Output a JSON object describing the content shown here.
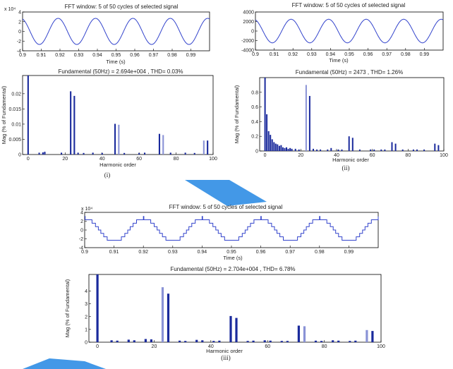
{
  "colors": {
    "signal": "#3344cc",
    "bar": "#1a2a9c",
    "bar_light": "#8a93d6",
    "watermark": "#2f8de4",
    "axis": "#000000"
  },
  "chart_data": [
    {
      "id": "p1-signal",
      "type": "line",
      "title": "FFT window: 5 of 50 cycles of selected signal",
      "xlabel": "Time (s)",
      "ylabel": "",
      "exponent": "x 10⁴",
      "xlim": [
        0.9,
        1.0
      ],
      "ylim": [
        -4,
        4
      ],
      "xticks": [
        0.9,
        0.91,
        0.92,
        0.93,
        0.94,
        0.95,
        0.96,
        0.97,
        0.98,
        0.99
      ],
      "xtick_labels": [
        "0.9",
        "0.91",
        "0.92",
        "0.93",
        "0.94",
        "0.95",
        "0.96",
        "0.97",
        "0.98",
        "0.99"
      ],
      "yticks": [
        -4,
        -2,
        0,
        2,
        4
      ],
      "ytick_labels": [
        "-4",
        "-2",
        "0",
        "2",
        "4"
      ],
      "amplitude": 2.69,
      "frequency_hz": 50,
      "phase": 0.3,
      "stepped": false
    },
    {
      "id": "p1-spectrum",
      "type": "bar",
      "title": "Fundamental (50Hz) = 2.694e+004 , THD= 0.03%",
      "xlabel": "Harmonic order",
      "ylabel": "Mag (% of Fundamental)",
      "xlim": [
        -3,
        100
      ],
      "ylim": [
        0,
        0.026
      ],
      "xticks": [
        0,
        20,
        40,
        60,
        80,
        100
      ],
      "xtick_labels": [
        "0",
        "20",
        "40",
        "60",
        "80",
        "100"
      ],
      "yticks": [
        0,
        0.005,
        0.01,
        0.015,
        0.02
      ],
      "ytick_labels": [
        "0",
        "0.005",
        "0.01",
        "0.015",
        "0.02"
      ],
      "harmonics": [
        0,
        6,
        8,
        9,
        18,
        23,
        25,
        27,
        30,
        35,
        40,
        47,
        49,
        52,
        60,
        63,
        71,
        73,
        77,
        85,
        90,
        95,
        97
      ],
      "values": [
        0.0265,
        0.0006,
        0.0007,
        0.0009,
        0.0006,
        0.0208,
        0.0193,
        0.0006,
        0.0005,
        0.0006,
        0.0005,
        0.0101,
        0.0098,
        0.0005,
        0.0005,
        0.0006,
        0.0068,
        0.0064,
        0.0006,
        0.0006,
        0.0005,
        0.0046,
        0.0046
      ],
      "light": [
        false,
        false,
        false,
        false,
        false,
        false,
        false,
        false,
        false,
        false,
        false,
        false,
        true,
        false,
        false,
        false,
        false,
        true,
        false,
        false,
        false,
        true,
        false
      ]
    },
    {
      "id": "p2-signal",
      "type": "line",
      "title": "FFT window: 5 of 50 cycles of selected signal",
      "xlabel": "Time (s)",
      "ylabel": "",
      "exponent": "",
      "xlim": [
        0.9,
        1.0
      ],
      "ylim": [
        -4000,
        4000
      ],
      "xticks": [
        0.9,
        0.91,
        0.92,
        0.93,
        0.94,
        0.95,
        0.96,
        0.97,
        0.98,
        0.99
      ],
      "xtick_labels": [
        "0.9",
        "0.91",
        "0.92",
        "0.93",
        "0.94",
        "0.95",
        "0.96",
        "0.97",
        "0.98",
        "0.99"
      ],
      "yticks": [
        -4000,
        -2000,
        0,
        2000,
        4000
      ],
      "ytick_labels": [
        "-4000",
        "-2000",
        "0",
        "2000",
        "4000"
      ],
      "amplitude": 2473,
      "frequency_hz": 50,
      "phase": 0.3,
      "stepped": false
    },
    {
      "id": "p2-spectrum",
      "type": "bar",
      "title": "Fundamental (50Hz) = 2473 , THD= 1.26%",
      "xlabel": "Harmonic order",
      "ylabel": "Mag (% of Fundamental)",
      "xlim": [
        -3,
        100
      ],
      "ylim": [
        0,
        1.0
      ],
      "xticks": [
        0,
        20,
        40,
        60,
        80,
        100
      ],
      "xtick_labels": [
        "0",
        "20",
        "40",
        "60",
        "80",
        "100"
      ],
      "yticks": [
        0,
        0.2,
        0.4,
        0.6,
        0.8
      ],
      "ytick_labels": [
        "0",
        "0.2",
        "0.4",
        "0.6",
        "0.8"
      ],
      "harmonics": [
        0,
        1,
        2,
        3,
        4,
        5,
        6,
        7,
        8,
        9,
        10,
        11,
        12,
        13,
        14,
        15,
        17,
        19,
        23,
        25,
        27,
        29,
        31,
        35,
        37,
        41,
        43,
        47,
        49,
        53,
        59,
        61,
        65,
        67,
        71,
        73,
        77,
        83,
        85,
        89,
        95,
        97
      ],
      "values": [
        1.0,
        0.5,
        0.27,
        0.22,
        0.16,
        0.12,
        0.1,
        0.09,
        0.07,
        0.08,
        0.05,
        0.04,
        0.05,
        0.03,
        0.04,
        0.03,
        0.03,
        0.02,
        0.9,
        0.75,
        0.03,
        0.02,
        0.02,
        0.02,
        0.04,
        0.02,
        0.02,
        0.2,
        0.18,
        0.02,
        0.02,
        0.02,
        0.02,
        0.02,
        0.12,
        0.1,
        0.02,
        0.02,
        0.02,
        0.02,
        0.1,
        0.08
      ],
      "light": [
        false,
        false,
        false,
        false,
        false,
        false,
        false,
        false,
        false,
        false,
        false,
        false,
        false,
        false,
        false,
        false,
        false,
        false,
        true,
        false,
        false,
        false,
        false,
        false,
        false,
        false,
        false,
        false,
        false,
        false,
        false,
        false,
        false,
        false,
        false,
        false,
        false,
        false,
        false,
        false,
        false,
        false
      ]
    },
    {
      "id": "p3-signal",
      "type": "line",
      "title": "FFT window: 5 of 50 cycles of selected signal",
      "xlabel": "Time (s)",
      "ylabel": "",
      "exponent": "x 10⁴",
      "xlim": [
        0.9,
        1.0
      ],
      "ylim": [
        -4,
        4
      ],
      "xticks": [
        0.9,
        0.91,
        0.92,
        0.93,
        0.94,
        0.95,
        0.96,
        0.97,
        0.98,
        0.99
      ],
      "xtick_labels": [
        "0.9",
        "0.91",
        "0.92",
        "0.93",
        "0.94",
        "0.95",
        "0.96",
        "0.97",
        "0.98",
        "0.99"
      ],
      "yticks": [
        -4,
        -2,
        0,
        2,
        4
      ],
      "ytick_labels": [
        "-4",
        "-2",
        "0",
        "2",
        "4"
      ],
      "amplitude": 2.7,
      "frequency_hz": 50,
      "phase": 0.25,
      "stepped": true
    },
    {
      "id": "p3-spectrum",
      "type": "bar",
      "title": "Fundamental (50Hz) = 2.704e+004 , THD= 6.78%",
      "xlabel": "Harmonic order",
      "ylabel": "Mag (% of Fundamental)",
      "xlim": [
        -3,
        100
      ],
      "ylim": [
        0,
        5.3
      ],
      "xticks": [
        0,
        20,
        40,
        60,
        80,
        100
      ],
      "xtick_labels": [
        "0",
        "20",
        "40",
        "60",
        "80",
        "100"
      ],
      "yticks": [
        0,
        1,
        2,
        3,
        4
      ],
      "ytick_labels": [
        "0",
        "1",
        "2",
        "3",
        "4"
      ],
      "harmonics": [
        0,
        5,
        7,
        11,
        13,
        17,
        19,
        23,
        25,
        29,
        31,
        35,
        37,
        41,
        43,
        47,
        49,
        53,
        55,
        59,
        61,
        65,
        67,
        71,
        73,
        77,
        79,
        83,
        85,
        89,
        91,
        95,
        97
      ],
      "values": [
        5.3,
        0.15,
        0.12,
        0.2,
        0.15,
        0.25,
        0.22,
        4.3,
        3.8,
        0.12,
        0.1,
        0.18,
        0.15,
        0.1,
        0.12,
        2.05,
        1.9,
        0.1,
        0.12,
        0.15,
        0.12,
        0.1,
        0.1,
        1.3,
        1.25,
        0.12,
        0.1,
        0.15,
        0.12,
        0.1,
        0.12,
        0.95,
        0.88
      ],
      "light": [
        false,
        false,
        false,
        false,
        false,
        false,
        false,
        true,
        false,
        false,
        false,
        false,
        false,
        false,
        false,
        false,
        false,
        false,
        false,
        false,
        false,
        false,
        false,
        false,
        true,
        false,
        false,
        false,
        false,
        false,
        false,
        true,
        false
      ]
    }
  ],
  "captions": {
    "fig1": "(i)",
    "fig2": "(ii)",
    "fig3": "(iii)"
  }
}
